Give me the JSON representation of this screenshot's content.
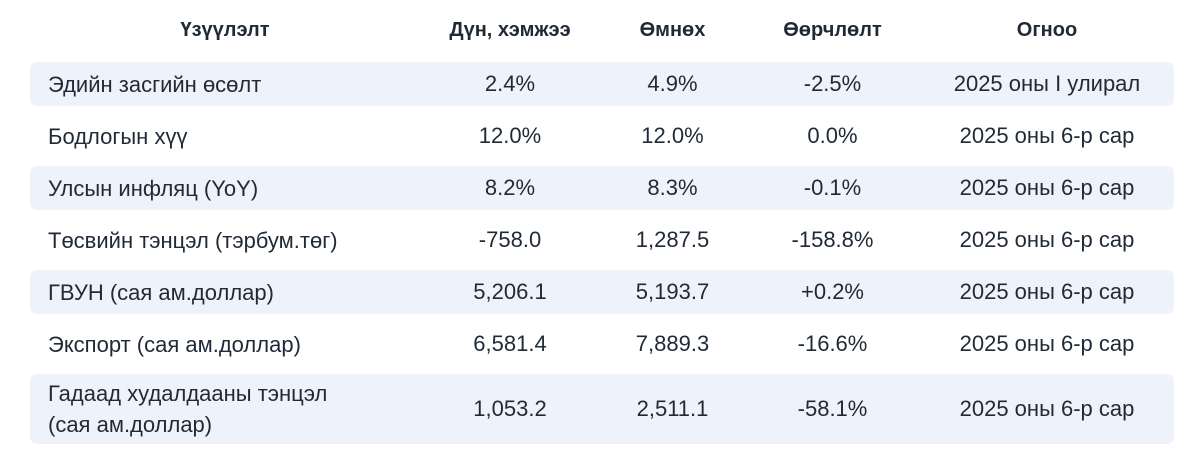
{
  "headers": {
    "indicator": "Үзүүлэлт",
    "value": "Дүн, хэмжээ",
    "previous": "Өмнөх",
    "change": "Өөрчлөлт",
    "date": "Огноо"
  },
  "rows": [
    {
      "indicator": "Эдийн засгийн өсөлт",
      "value": "2.4%",
      "previous": "4.9%",
      "change": "-2.5%",
      "date": "2025 оны I улирал"
    },
    {
      "indicator": "Бодлогын хүү",
      "value": "12.0%",
      "previous": "12.0%",
      "change": "0.0%",
      "date": "2025 оны 6-р сар"
    },
    {
      "indicator": "Улсын инфляц (YoY)",
      "value": "8.2%",
      "previous": "8.3%",
      "change": "-0.1%",
      "date": "2025 оны 6-р сар"
    },
    {
      "indicator": "Төсвийн тэнцэл (тэрбум.төг)",
      "value": "-758.0",
      "previous": "1,287.5",
      "change": "-158.8%",
      "date": "2025 оны 6-р сар"
    },
    {
      "indicator": "ГВУН (сая ам.доллар)",
      "value": "5,206.1",
      "previous": "5,193.7",
      "change": "+0.2%",
      "date": "2025 оны 6-р сар"
    },
    {
      "indicator": "Экспорт (сая ам.доллар)",
      "value": "6,581.4",
      "previous": "7,889.3",
      "change": "-16.6%",
      "date": "2025 оны 6-р сар"
    },
    {
      "indicator_line1": "Гадаад худалдааны тэнцэл",
      "indicator_line2": "(сая ам.доллар)",
      "value": "1,053.2",
      "previous": "2,511.1",
      "change": "-58.1%",
      "date": "2025 оны 6-р сар"
    }
  ]
}
